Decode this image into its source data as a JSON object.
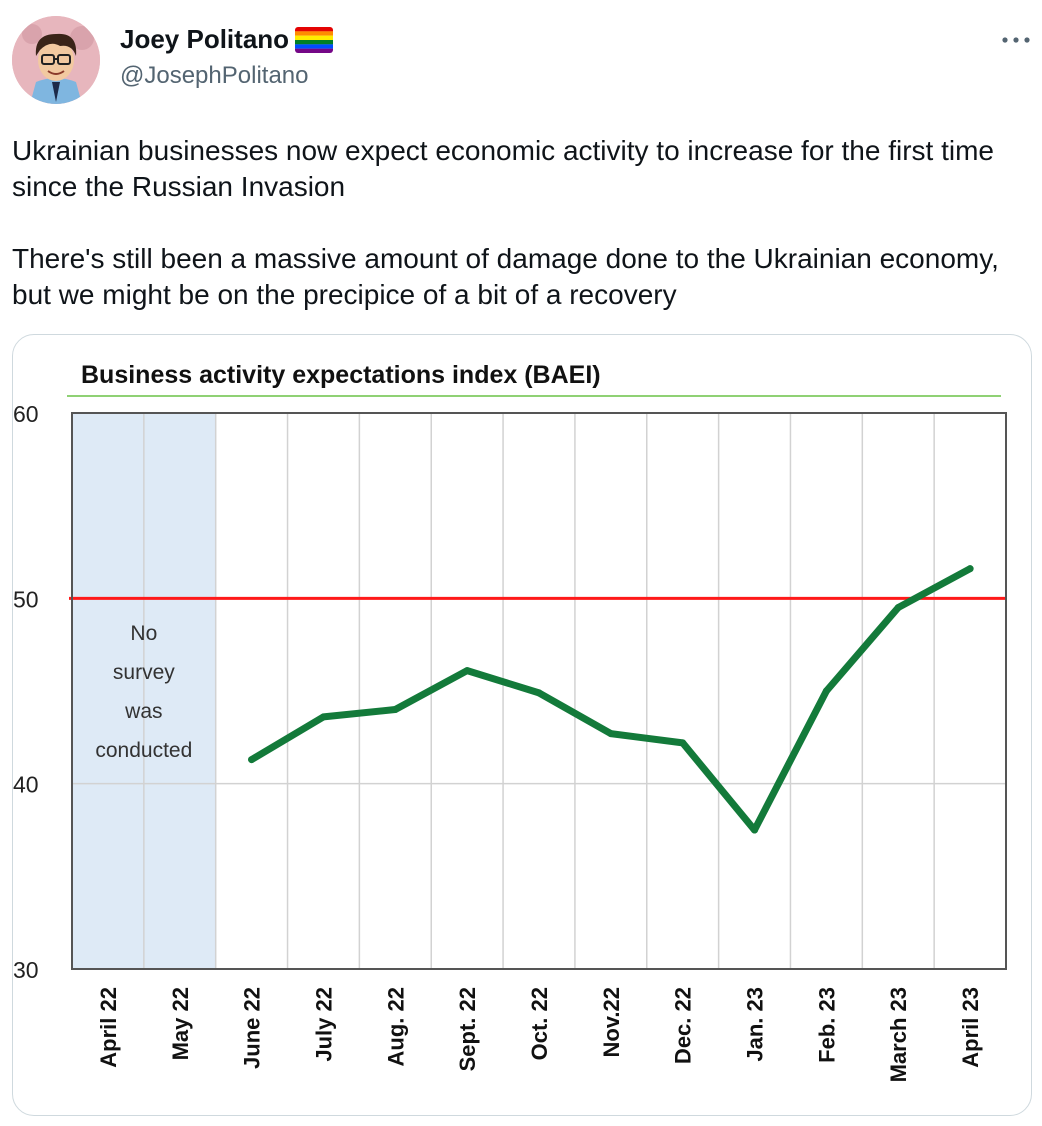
{
  "author": {
    "name": "Joey Politano",
    "handle": "@JosephPolitano",
    "avatar_icon": "cartoon-avatar-icon",
    "flag_icon": "rainbow-flag-icon"
  },
  "more_icon": "more-horizontal-icon",
  "tweet": {
    "paragraphs": [
      "Ukrainian businesses now expect economic activity to increase for the first time since the Russian Invasion",
      "There's still been a massive amount of damage done to the Ukrainian economy, but we might be on the precipice of a bit of a recovery"
    ]
  },
  "chart_data": {
    "type": "line",
    "title": "Business activity expectations index (BAEI)",
    "categories": [
      "April 22",
      "May 22",
      "June 22",
      "July 22",
      "Aug. 22",
      "Sept. 22",
      "Oct. 22",
      "Nov.22",
      "Dec. 22",
      "Jan. 23",
      "Feb. 23",
      "March 23",
      "April  23"
    ],
    "series": [
      {
        "values": [
          null,
          null,
          41.3,
          43.6,
          44.0,
          46.1,
          44.9,
          42.7,
          42.2,
          37.5,
          45.0,
          49.5,
          51.6
        ],
        "color": "#137a3a"
      }
    ],
    "ylim": [
      30,
      60
    ],
    "yticks": [
      "60",
      "50",
      "40",
      "30"
    ],
    "reference_line": {
      "value": 50,
      "color": "#ff1a1a"
    },
    "shaded_note": {
      "lines": [
        "No",
        "survey",
        "was",
        "conducted"
      ],
      "color": "#deeaf6",
      "covers": [
        "April 22",
        "May 22"
      ]
    },
    "grid": true,
    "title_underline_color": "#8fd174"
  }
}
